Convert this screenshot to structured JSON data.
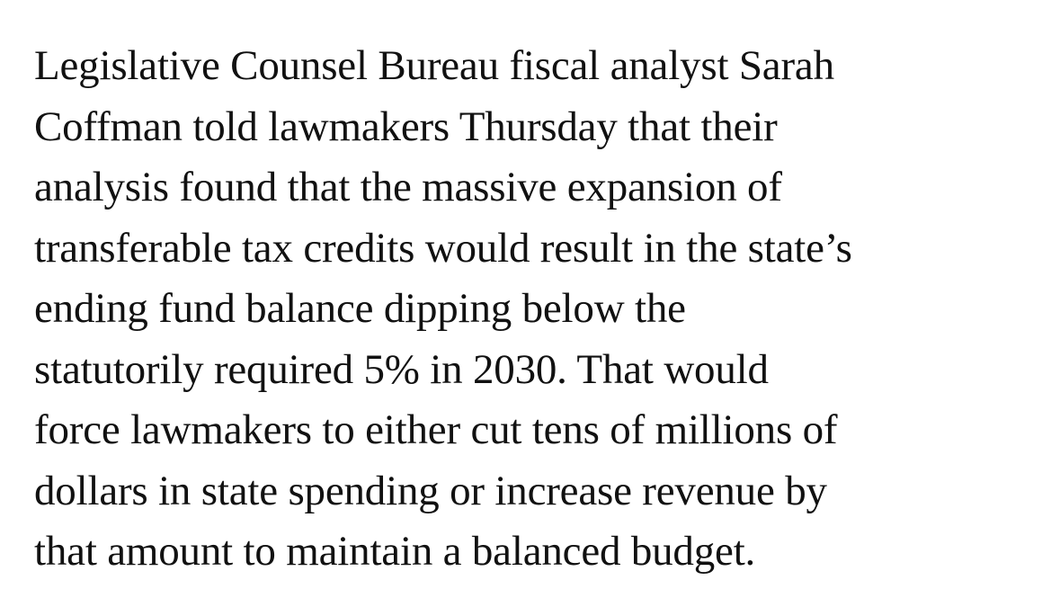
{
  "article": {
    "lines": [
      "Legislative Counsel Bureau fiscal analyst Sarah",
      "Coffman told lawmakers Thursday that their",
      "analysis found that the massive expansion of",
      "transferable tax credits would result in the state’s",
      "ending fund balance dipping below the",
      "statutorily required 5% in 2030. That would",
      "force lawmakers to either cut tens of millions of",
      "dollars in state spending or increase revenue by",
      "that amount to maintain a balanced budget."
    ]
  }
}
